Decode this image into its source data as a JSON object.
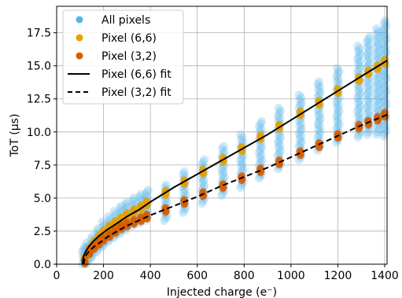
{
  "chart_data": {
    "type": "scatter",
    "title": "",
    "xlabel": "Injected charge (e⁻)",
    "ylabel": "ToT (µs)",
    "xlim": [
      0,
      1410
    ],
    "ylim": [
      0,
      19.5
    ],
    "xticks": [
      0,
      200,
      400,
      600,
      800,
      1000,
      1200,
      1400
    ],
    "yticks": [
      0.0,
      2.5,
      5.0,
      7.5,
      10.0,
      12.5,
      15.0,
      17.5
    ],
    "xtick_labels": [
      "0",
      "200",
      "400",
      "600",
      "800",
      "1000",
      "1200",
      "1400"
    ],
    "ytick_labels": [
      "0.0",
      "2.5",
      "5.0",
      "7.5",
      "10.0",
      "12.5",
      "15.0",
      "17.5"
    ],
    "grid": true,
    "legend_position": "top-left",
    "colors": {
      "all_pixels": "#56b4e9",
      "pixel_66": "#e69f00",
      "pixel_32": "#d55e00",
      "fit": "#000000"
    },
    "series": [
      {
        "name": "All pixels",
        "kind": "scatter-band",
        "points": [
          {
            "x": 115,
            "low": 0.0,
            "high": 1.3
          },
          {
            "x": 130,
            "low": 0.0,
            "high": 1.6
          },
          {
            "x": 150,
            "low": 0.4,
            "high": 2.1
          },
          {
            "x": 175,
            "low": 0.9,
            "high": 2.7
          },
          {
            "x": 200,
            "low": 1.3,
            "high": 3.2
          },
          {
            "x": 225,
            "low": 1.7,
            "high": 3.6
          },
          {
            "x": 250,
            "low": 2.0,
            "high": 4.0
          },
          {
            "x": 275,
            "low": 2.3,
            "high": 4.4
          },
          {
            "x": 300,
            "low": 2.6,
            "high": 4.7
          },
          {
            "x": 330,
            "low": 2.9,
            "high": 5.0
          },
          {
            "x": 360,
            "low": 3.1,
            "high": 5.3
          },
          {
            "x": 385,
            "low": 3.3,
            "high": 5.6
          },
          {
            "x": 465,
            "low": 3.3,
            "high": 6.0
          },
          {
            "x": 545,
            "low": 3.9,
            "high": 7.0
          },
          {
            "x": 625,
            "low": 4.6,
            "high": 7.9
          },
          {
            "x": 710,
            "low": 5.2,
            "high": 8.9
          },
          {
            "x": 790,
            "low": 5.8,
            "high": 9.8
          },
          {
            "x": 870,
            "low": 6.5,
            "high": 10.8
          },
          {
            "x": 950,
            "low": 7.2,
            "high": 11.8
          },
          {
            "x": 1040,
            "low": 7.9,
            "high": 12.8
          },
          {
            "x": 1120,
            "low": 8.6,
            "high": 13.8
          },
          {
            "x": 1200,
            "low": 9.2,
            "high": 14.8
          },
          {
            "x": 1290,
            "low": 9.6,
            "high": 16.5
          },
          {
            "x": 1330,
            "low": 9.8,
            "high": 17.2
          },
          {
            "x": 1370,
            "low": 9.8,
            "high": 17.8
          },
          {
            "x": 1400,
            "low": 9.7,
            "high": 18.4
          }
        ]
      },
      {
        "name": "Pixel (6,6)",
        "kind": "scatter",
        "points": [
          {
            "x": 120,
            "y": 0.4
          },
          {
            "x": 140,
            "y": 1.1
          },
          {
            "x": 160,
            "y": 1.6
          },
          {
            "x": 180,
            "y": 2.0
          },
          {
            "x": 200,
            "y": 2.4
          },
          {
            "x": 225,
            "y": 2.8
          },
          {
            "x": 250,
            "y": 3.1
          },
          {
            "x": 275,
            "y": 3.4
          },
          {
            "x": 300,
            "y": 3.7
          },
          {
            "x": 330,
            "y": 4.0
          },
          {
            "x": 360,
            "y": 4.3
          },
          {
            "x": 385,
            "y": 4.6
          },
          {
            "x": 465,
            "y": 5.4
          },
          {
            "x": 545,
            "y": 6.2
          },
          {
            "x": 625,
            "y": 7.0
          },
          {
            "x": 710,
            "y": 7.9
          },
          {
            "x": 790,
            "y": 8.7
          },
          {
            "x": 870,
            "y": 9.6
          },
          {
            "x": 950,
            "y": 10.4
          },
          {
            "x": 1040,
            "y": 11.4
          },
          {
            "x": 1120,
            "y": 12.2
          },
          {
            "x": 1200,
            "y": 13.1
          },
          {
            "x": 1290,
            "y": 14.0
          },
          {
            "x": 1330,
            "y": 14.5
          },
          {
            "x": 1370,
            "y": 14.9
          },
          {
            "x": 1400,
            "y": 15.3
          }
        ]
      },
      {
        "name": "Pixel (3,2)",
        "kind": "scatter",
        "points": [
          {
            "x": 120,
            "y": 0.2
          },
          {
            "x": 140,
            "y": 0.9
          },
          {
            "x": 160,
            "y": 1.3
          },
          {
            "x": 180,
            "y": 1.6
          },
          {
            "x": 200,
            "y": 1.9
          },
          {
            "x": 225,
            "y": 2.2
          },
          {
            "x": 250,
            "y": 2.5
          },
          {
            "x": 275,
            "y": 2.8
          },
          {
            "x": 300,
            "y": 3.0
          },
          {
            "x": 330,
            "y": 3.2
          },
          {
            "x": 360,
            "y": 3.4
          },
          {
            "x": 385,
            "y": 3.6
          },
          {
            "x": 465,
            "y": 4.1
          },
          {
            "x": 545,
            "y": 4.7
          },
          {
            "x": 625,
            "y": 5.3
          },
          {
            "x": 710,
            "y": 5.9
          },
          {
            "x": 790,
            "y": 6.5
          },
          {
            "x": 870,
            "y": 7.1
          },
          {
            "x": 950,
            "y": 7.7
          },
          {
            "x": 1040,
            "y": 8.4
          },
          {
            "x": 1120,
            "y": 9.0
          },
          {
            "x": 1200,
            "y": 9.7
          },
          {
            "x": 1290,
            "y": 10.4
          },
          {
            "x": 1330,
            "y": 10.7
          },
          {
            "x": 1370,
            "y": 11.0
          },
          {
            "x": 1400,
            "y": 11.3
          }
        ]
      },
      {
        "name": "Pixel (6,6) fit",
        "kind": "line",
        "style": "solid",
        "points": [
          {
            "x": 110,
            "y": 0.0
          },
          {
            "x": 115,
            "y": 0.6
          },
          {
            "x": 125,
            "y": 1.0
          },
          {
            "x": 140,
            "y": 1.4
          },
          {
            "x": 160,
            "y": 1.8
          },
          {
            "x": 185,
            "y": 2.2
          },
          {
            "x": 215,
            "y": 2.6
          },
          {
            "x": 250,
            "y": 3.0
          },
          {
            "x": 300,
            "y": 3.6
          },
          {
            "x": 350,
            "y": 4.1
          },
          {
            "x": 400,
            "y": 4.7
          },
          {
            "x": 500,
            "y": 5.8
          },
          {
            "x": 600,
            "y": 6.8
          },
          {
            "x": 700,
            "y": 7.8
          },
          {
            "x": 800,
            "y": 8.8
          },
          {
            "x": 900,
            "y": 9.8
          },
          {
            "x": 1000,
            "y": 10.9
          },
          {
            "x": 1100,
            "y": 12.0
          },
          {
            "x": 1200,
            "y": 13.1
          },
          {
            "x": 1300,
            "y": 14.2
          },
          {
            "x": 1410,
            "y": 15.4
          }
        ]
      },
      {
        "name": "Pixel (3,2) fit",
        "kind": "line",
        "style": "dashed",
        "points": [
          {
            "x": 115,
            "y": 0.0
          },
          {
            "x": 120,
            "y": 0.5
          },
          {
            "x": 130,
            "y": 0.8
          },
          {
            "x": 145,
            "y": 1.1
          },
          {
            "x": 165,
            "y": 1.4
          },
          {
            "x": 190,
            "y": 1.7
          },
          {
            "x": 220,
            "y": 2.1
          },
          {
            "x": 260,
            "y": 2.5
          },
          {
            "x": 300,
            "y": 2.9
          },
          {
            "x": 350,
            "y": 3.3
          },
          {
            "x": 400,
            "y": 3.7
          },
          {
            "x": 500,
            "y": 4.4
          },
          {
            "x": 600,
            "y": 5.1
          },
          {
            "x": 700,
            "y": 5.9
          },
          {
            "x": 800,
            "y": 6.6
          },
          {
            "x": 900,
            "y": 7.3
          },
          {
            "x": 1000,
            "y": 8.1
          },
          {
            "x": 1100,
            "y": 8.9
          },
          {
            "x": 1200,
            "y": 9.7
          },
          {
            "x": 1300,
            "y": 10.5
          },
          {
            "x": 1410,
            "y": 11.3
          }
        ]
      }
    ]
  }
}
